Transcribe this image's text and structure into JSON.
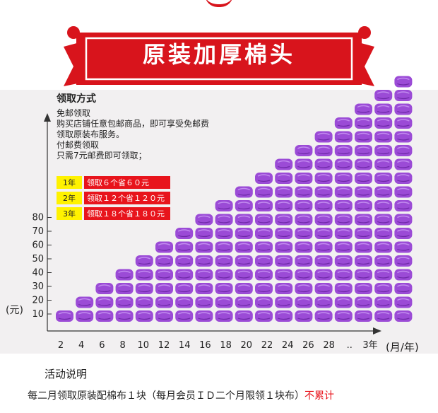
{
  "banner": {
    "title": "原装加厚棉头",
    "color": "#d8141c"
  },
  "info": {
    "heading": "领取方式",
    "lines": [
      "免邮领取",
      "购买店铺任意包邮商品，即可享受免邮费",
      "领取原装布服务。",
      "付邮费领取",
      "只需7元邮费即可领取；"
    ]
  },
  "offers": [
    {
      "year": "1年",
      "text": "领取６个省６０元"
    },
    {
      "year": "2年",
      "text": "领取１２个省１２０元"
    },
    {
      "year": "3年",
      "text": "领取１８个省１８０元"
    }
  ],
  "chart_data": {
    "type": "bar",
    "ylabel": "(元)",
    "xlabel": "(月/年)",
    "y_ticks": [
      "10",
      "20",
      "30",
      "40",
      "50",
      "60",
      "70",
      "80"
    ],
    "x_ticks": [
      "2",
      "4",
      "6",
      "8",
      "10",
      "12",
      "14",
      "16",
      "18",
      "20",
      "22",
      "24",
      "26",
      "28",
      "..",
      "3年"
    ],
    "columns_pieces": [
      1,
      2,
      3,
      4,
      5,
      6,
      7,
      8,
      9,
      10,
      11,
      12,
      13,
      14,
      15,
      16,
      17,
      18
    ],
    "piece_color": "#9b4bd6"
  },
  "footer": {
    "title": "活动说明",
    "note": "每二月领取原装配棉布１块（每月会员ＩＤ二个月限领１块布）",
    "warning": "不累计"
  }
}
